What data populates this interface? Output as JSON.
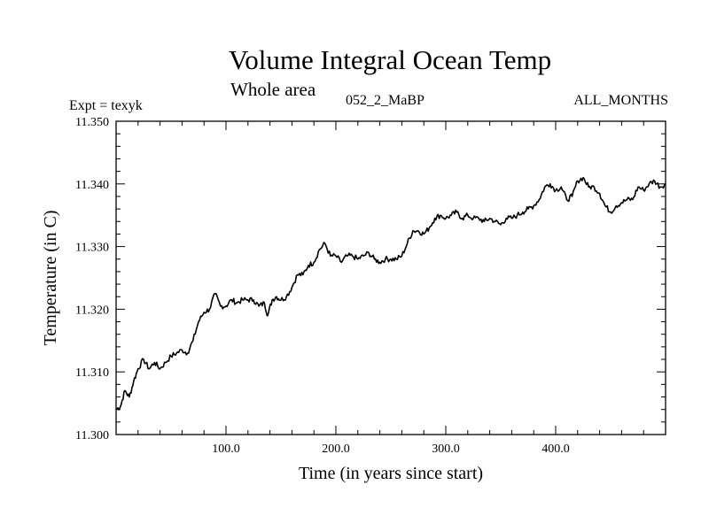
{
  "header": {
    "title": "Volume Integral Ocean Temp",
    "subtitle": "Whole area",
    "experiment": "Expt = texyk",
    "run": "052_2_MaBP",
    "months": "ALL_MONTHS"
  },
  "chart_data": {
    "type": "line",
    "title": "Volume Integral Ocean Temp",
    "subtitle": "Whole area",
    "xlabel": "Time (in years since start)",
    "ylabel": "Temperature (in C)",
    "xlim": [
      0,
      500
    ],
    "ylim": [
      11.3,
      11.35
    ],
    "x_ticks": [
      100,
      200,
      300,
      400
    ],
    "x_tick_labels": [
      "100.0",
      "200.0",
      "300.0",
      "400.0"
    ],
    "y_ticks": [
      11.3,
      11.31,
      11.32,
      11.33,
      11.34,
      11.35
    ],
    "y_tick_labels": [
      "11.300",
      "11.310",
      "11.320",
      "11.330",
      "11.340",
      "11.350"
    ],
    "grid": false,
    "series": [
      {
        "color": "#000000",
        "x": [
          0,
          4,
          8,
          12,
          16,
          20,
          25,
          30,
          35,
          40,
          45,
          50,
          55,
          60,
          65,
          70,
          75,
          80,
          85,
          90,
          95,
          100,
          105,
          110,
          115,
          120,
          125,
          130,
          135,
          138,
          142,
          146,
          150,
          155,
          160,
          165,
          170,
          175,
          180,
          185,
          190,
          195,
          200,
          205,
          210,
          215,
          220,
          225,
          230,
          235,
          240,
          245,
          250,
          255,
          260,
          265,
          270,
          275,
          280,
          285,
          290,
          295,
          300,
          305,
          310,
          315,
          320,
          325,
          330,
          335,
          340,
          345,
          350,
          355,
          360,
          365,
          370,
          375,
          380,
          385,
          390,
          395,
          400,
          405,
          410,
          415,
          420,
          425,
          430,
          435,
          440,
          445,
          450,
          455,
          460,
          465,
          470,
          475,
          480,
          485,
          490,
          495,
          500
        ],
        "values": [
          11.304,
          11.3045,
          11.307,
          11.306,
          11.3085,
          11.3105,
          11.312,
          11.3105,
          11.3115,
          11.3105,
          11.3115,
          11.3125,
          11.313,
          11.3135,
          11.313,
          11.315,
          11.318,
          11.3195,
          11.32,
          11.3225,
          11.3205,
          11.3205,
          11.3215,
          11.321,
          11.3215,
          11.3215,
          11.3215,
          11.3205,
          11.321,
          11.319,
          11.3215,
          11.322,
          11.3215,
          11.322,
          11.3235,
          11.3255,
          11.3255,
          11.327,
          11.3275,
          11.3295,
          11.3305,
          11.3285,
          11.3285,
          11.3275,
          11.3285,
          11.3285,
          11.328,
          11.3285,
          11.329,
          11.328,
          11.3275,
          11.328,
          11.328,
          11.328,
          11.3285,
          11.3305,
          11.3325,
          11.3325,
          11.332,
          11.333,
          11.3345,
          11.335,
          11.3345,
          11.335,
          11.3355,
          11.3345,
          11.335,
          11.3345,
          11.3345,
          11.334,
          11.3345,
          11.334,
          11.3335,
          11.3345,
          11.3345,
          11.335,
          11.3355,
          11.336,
          11.3365,
          11.3375,
          11.3395,
          11.34,
          11.339,
          11.3395,
          11.3375,
          11.338,
          11.3405,
          11.341,
          11.3395,
          11.3395,
          11.3385,
          11.3365,
          11.3355,
          11.3365,
          11.337,
          11.3375,
          11.3375,
          11.3395,
          11.339,
          11.34,
          11.3405,
          11.3395,
          11.34
        ]
      }
    ]
  }
}
